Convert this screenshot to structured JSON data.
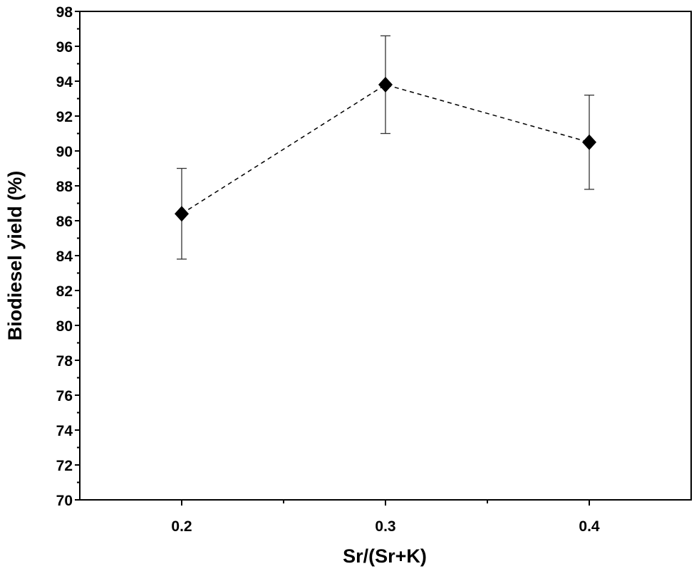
{
  "chart_data": {
    "type": "scatter",
    "title": "",
    "xlabel": "Sr/(Sr+K)",
    "ylabel": "Biodiesel yield (%)",
    "xlim": [
      0.15,
      0.45
    ],
    "ylim": [
      70,
      98
    ],
    "x_ticks": [
      "0.2",
      "0.3",
      "0.4"
    ],
    "x_tick_values": [
      0.2,
      0.3,
      0.4
    ],
    "y_ticks": [
      "70",
      "72",
      "74",
      "76",
      "78",
      "80",
      "82",
      "84",
      "86",
      "88",
      "90",
      "92",
      "94",
      "96",
      "98"
    ],
    "y_tick_values": [
      70,
      72,
      74,
      76,
      78,
      80,
      82,
      84,
      86,
      88,
      90,
      92,
      94,
      96,
      98
    ],
    "grid": false,
    "series": [
      {
        "x": [
          0.2,
          0.3,
          0.4
        ],
        "y": [
          86.4,
          93.8,
          90.5
        ],
        "error": [
          2.6,
          2.8,
          2.7
        ],
        "marker": "diamond",
        "line": "dashed",
        "color": "#000000"
      }
    ]
  }
}
